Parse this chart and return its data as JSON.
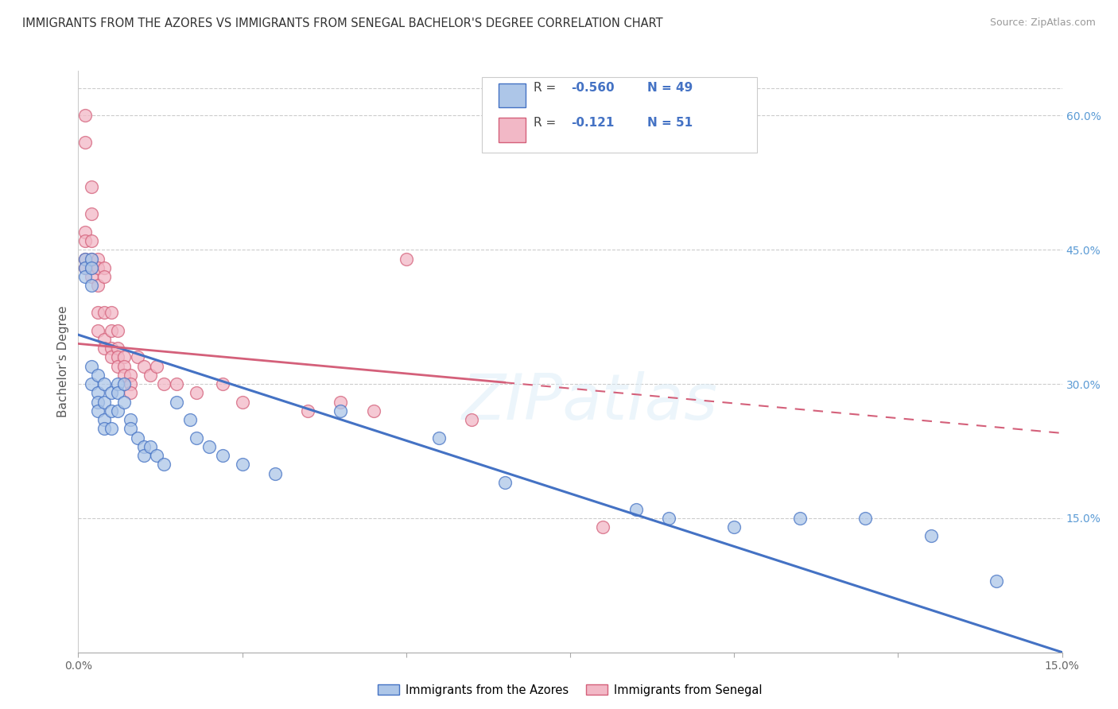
{
  "title": "IMMIGRANTS FROM THE AZORES VS IMMIGRANTS FROM SENEGAL BACHELOR'S DEGREE CORRELATION CHART",
  "source": "Source: ZipAtlas.com",
  "ylabel": "Bachelor's Degree",
  "x_min": 0.0,
  "x_max": 0.15,
  "y_min": 0.0,
  "y_max": 0.65,
  "x_ticks": [
    0.0,
    0.025,
    0.05,
    0.075,
    0.1,
    0.125,
    0.15
  ],
  "x_tick_labels": [
    "0.0%",
    "",
    "",
    "",
    "",
    "",
    "15.0%"
  ],
  "y_ticks_right": [
    0.0,
    0.15,
    0.3,
    0.45,
    0.6
  ],
  "y_tick_labels_right": [
    "",
    "15.0%",
    "30.0%",
    "45.0%",
    "60.0%"
  ],
  "color_azores_fill": "#adc6e8",
  "color_azores_edge": "#4472c4",
  "color_senegal_fill": "#f2b8c6",
  "color_senegal_edge": "#d4607a",
  "color_azores_line": "#4472c4",
  "color_senegal_line": "#d4607a",
  "color_right_axis": "#5b9bd5",
  "watermark": "ZIPatlas",
  "legend_r1": "R = ",
  "legend_v1": "-0.560",
  "legend_n1": "N = 49",
  "legend_r2": "R =  ",
  "legend_v2": "-0.121",
  "legend_n2": "N = 51",
  "azores_x": [
    0.001,
    0.001,
    0.001,
    0.002,
    0.002,
    0.002,
    0.002,
    0.002,
    0.003,
    0.003,
    0.003,
    0.003,
    0.004,
    0.004,
    0.004,
    0.004,
    0.005,
    0.005,
    0.005,
    0.006,
    0.006,
    0.006,
    0.007,
    0.007,
    0.008,
    0.008,
    0.009,
    0.01,
    0.01,
    0.011,
    0.012,
    0.013,
    0.015,
    0.017,
    0.018,
    0.02,
    0.022,
    0.025,
    0.03,
    0.04,
    0.055,
    0.065,
    0.085,
    0.09,
    0.1,
    0.11,
    0.12,
    0.13,
    0.14
  ],
  "azores_y": [
    0.44,
    0.43,
    0.42,
    0.44,
    0.43,
    0.41,
    0.32,
    0.3,
    0.31,
    0.29,
    0.28,
    0.27,
    0.3,
    0.28,
    0.26,
    0.25,
    0.29,
    0.27,
    0.25,
    0.3,
    0.29,
    0.27,
    0.3,
    0.28,
    0.26,
    0.25,
    0.24,
    0.23,
    0.22,
    0.23,
    0.22,
    0.21,
    0.28,
    0.26,
    0.24,
    0.23,
    0.22,
    0.21,
    0.2,
    0.27,
    0.24,
    0.19,
    0.16,
    0.15,
    0.14,
    0.15,
    0.15,
    0.13,
    0.08
  ],
  "senegal_x": [
    0.001,
    0.001,
    0.001,
    0.001,
    0.001,
    0.001,
    0.002,
    0.002,
    0.002,
    0.002,
    0.002,
    0.002,
    0.003,
    0.003,
    0.003,
    0.003,
    0.003,
    0.004,
    0.004,
    0.004,
    0.004,
    0.004,
    0.005,
    0.005,
    0.005,
    0.005,
    0.006,
    0.006,
    0.006,
    0.006,
    0.007,
    0.007,
    0.007,
    0.008,
    0.008,
    0.008,
    0.009,
    0.01,
    0.011,
    0.012,
    0.013,
    0.015,
    0.018,
    0.022,
    0.025,
    0.035,
    0.04,
    0.045,
    0.05,
    0.06,
    0.08
  ],
  "senegal_y": [
    0.6,
    0.57,
    0.47,
    0.46,
    0.44,
    0.43,
    0.52,
    0.49,
    0.46,
    0.44,
    0.43,
    0.42,
    0.44,
    0.43,
    0.41,
    0.38,
    0.36,
    0.43,
    0.42,
    0.38,
    0.35,
    0.34,
    0.38,
    0.36,
    0.34,
    0.33,
    0.36,
    0.34,
    0.33,
    0.32,
    0.33,
    0.32,
    0.31,
    0.31,
    0.3,
    0.29,
    0.33,
    0.32,
    0.31,
    0.32,
    0.3,
    0.3,
    0.29,
    0.3,
    0.28,
    0.27,
    0.28,
    0.27,
    0.44,
    0.26,
    0.14
  ]
}
